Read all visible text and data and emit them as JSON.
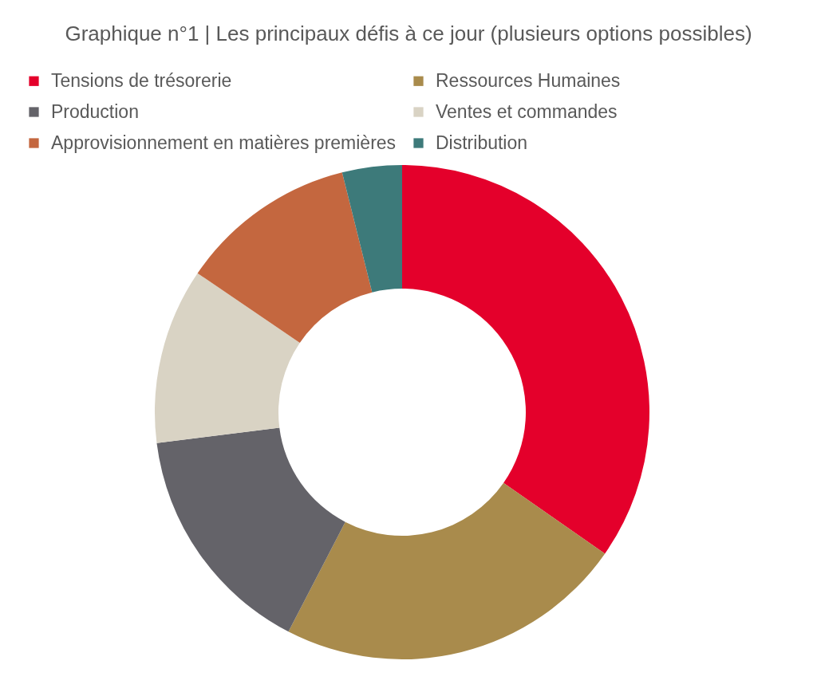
{
  "chart_data": {
    "type": "donut",
    "title": "Graphique n°1 | Les principaux défis à ce jour (plusieurs options possibles)",
    "categories": [
      "Tensions de trésorerie",
      "Ressources Humaines",
      "Production",
      "Ventes et commandes",
      "Approvisionnement en matières premières",
      "Distribution"
    ],
    "values": [
      34.7,
      22.9,
      15.4,
      11.5,
      11.6,
      3.9
    ],
    "colors": [
      "#e4002b",
      "#a98b4c",
      "#646369",
      "#d9d3c4",
      "#c4673f",
      "#3d7a7a"
    ],
    "legend": "top"
  }
}
